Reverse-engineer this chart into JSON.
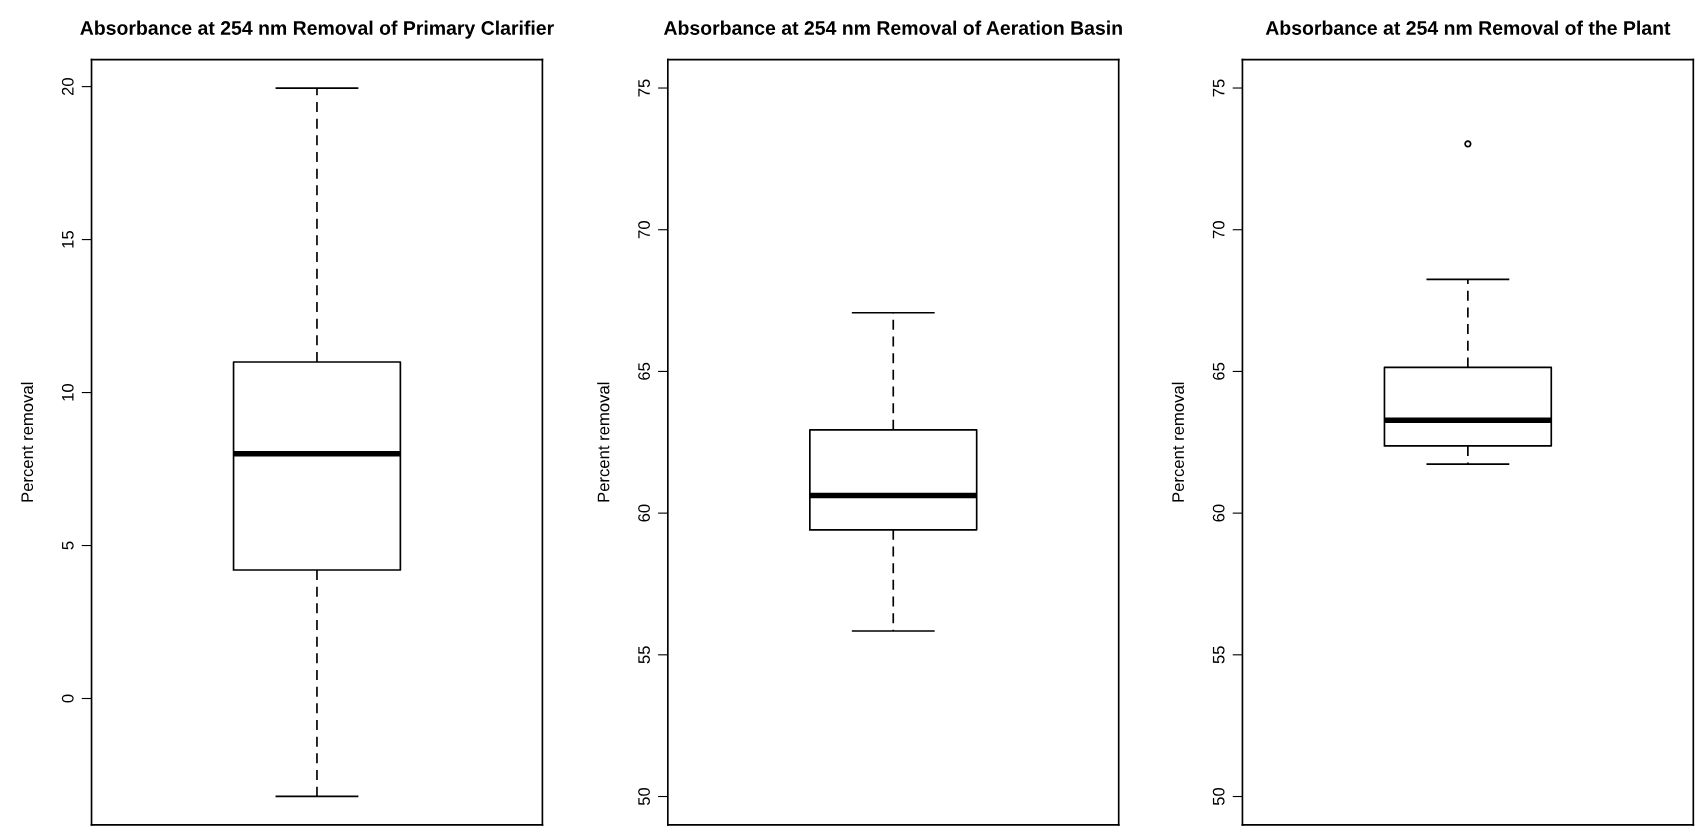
{
  "chart_data": [
    {
      "type": "box",
      "title": "Absorbance at 254 nm Removal of Primary Clarifier",
      "ylabel": "Percent removal",
      "categories": [
        null
      ],
      "ylim": [
        -4.13,
        20.88
      ],
      "yticks": [
        0,
        5,
        10,
        15,
        20
      ],
      "tick_labels": "y",
      "grid": false,
      "legend": false,
      "boxes": [
        {
          "low": -3.2,
          "q1": 4.2,
          "median": 8.0,
          "q3": 11.0,
          "high": 19.95
        }
      ]
    },
    {
      "type": "box",
      "title": "Absorbance at 254 nm Removal of Aeration Basin",
      "ylabel": "Percent removal",
      "categories": [
        null
      ],
      "ylim": [
        49.0,
        76.0
      ],
      "yticks": [
        50,
        55,
        60,
        65,
        70,
        75
      ],
      "tick_labels": "y",
      "grid": false,
      "legend": false,
      "boxes": [
        {
          "low": 55.84,
          "q1": 59.41,
          "median": 60.62,
          "q3": 62.94,
          "high": 67.07
        }
      ]
    },
    {
      "type": "box",
      "title": "Absorbance at 254 nm Removal of the Plant",
      "ylabel": "Percent removal",
      "categories": [
        null
      ],
      "ylim": [
        49.0,
        76.0
      ],
      "yticks": [
        50,
        55,
        60,
        65,
        70,
        75
      ],
      "tick_labels": "y",
      "grid": false,
      "legend": false,
      "boxes": [
        {
          "low": 61.73,
          "q1": 62.37,
          "median": 63.28,
          "q3": 65.14,
          "high": 68.25,
          "outliers": [
            73.03
          ]
        }
      ]
    }
  ]
}
